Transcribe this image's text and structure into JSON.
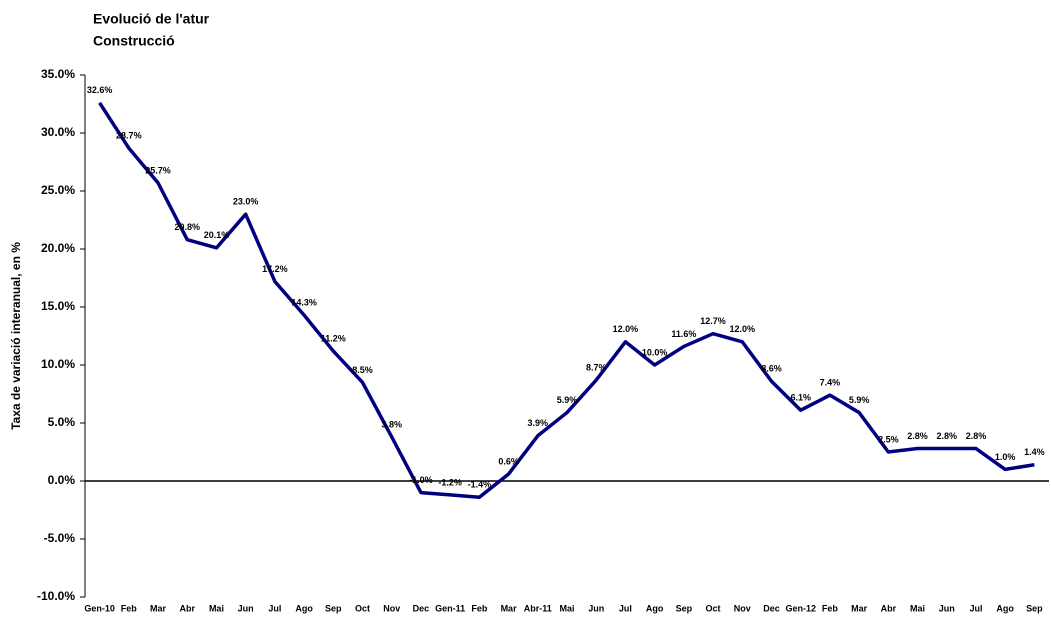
{
  "chart_data": {
    "type": "line",
    "title": "Evolució de l'atur",
    "subtitle": "Construcció",
    "y_label": "Taxa de variació interanual, en %",
    "categories": [
      "Gen-10",
      "Feb",
      "Mar",
      "Abr",
      "Mai",
      "Jun",
      "Jul",
      "Ago",
      "Sep",
      "Oct",
      "Nov",
      "Dec",
      "Gen-11",
      "Feb",
      "Mar",
      "Abr-11",
      "Mai",
      "Jun",
      "Jul",
      "Ago",
      "Sep",
      "Oct",
      "Nov",
      "Dec",
      "Gen-12",
      "Feb",
      "Mar",
      "Abr",
      "Mai",
      "Jun",
      "Jul",
      "Ago",
      "Sep"
    ],
    "series": [
      {
        "name": "Construcció",
        "color": "#000080",
        "values": [
          32.6,
          28.7,
          25.7,
          20.8,
          20.1,
          23.0,
          17.2,
          14.3,
          11.2,
          8.5,
          3.8,
          -1.0,
          -1.2,
          -1.4,
          0.6,
          3.9,
          5.9,
          8.7,
          12.0,
          10.0,
          11.6,
          12.7,
          12.0,
          8.6,
          6.1,
          7.4,
          5.9,
          2.5,
          2.8,
          2.8,
          2.8,
          1.0,
          1.4
        ],
        "value_labels": [
          "32.6%",
          "28.7%",
          "25.7%",
          "20.8%",
          "20.1%",
          "23.0%",
          "17.2%",
          "14.3%",
          "11.2%",
          "8.5%",
          "3.8%",
          "-1.0%",
          "-1.2%",
          "-1.4%",
          "0.6%",
          "3.9%",
          "5.9%",
          "8.7%",
          "12.0%",
          "10.0%",
          "11.6%",
          "12.7%",
          "12.0%",
          "8.6%",
          "6.1%",
          "7.4%",
          "5.9%",
          "2.5%",
          "2.8%",
          "2.8%",
          "2.8%",
          "1.0%",
          "1.4%"
        ]
      }
    ],
    "ylim": [
      -10,
      35
    ],
    "yticks": [
      {
        "value": -10,
        "label": "-10.0%"
      },
      {
        "value": -5,
        "label": "-5.0%"
      },
      {
        "value": 0,
        "label": "0.0%"
      },
      {
        "value": 5,
        "label": "5.0%"
      },
      {
        "value": 10,
        "label": "10.0%"
      },
      {
        "value": 15,
        "label": "15.0%"
      },
      {
        "value": 20,
        "label": "20.0%"
      },
      {
        "value": 25,
        "label": "25.0%"
      },
      {
        "value": 30,
        "label": "30.0%"
      },
      {
        "value": 35,
        "label": "35.0%"
      }
    ],
    "grid": false
  }
}
